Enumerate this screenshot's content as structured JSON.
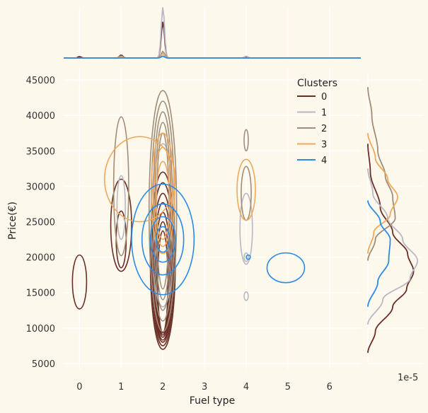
{
  "chart_data": {
    "type": "kde-jointplot",
    "xlabel": "Fuel type",
    "ylabel": "Price(€)",
    "x_ticks": [
      0,
      1,
      2,
      3,
      4,
      5,
      6
    ],
    "y_ticks": [
      5000,
      10000,
      15000,
      20000,
      25000,
      30000,
      35000,
      40000,
      45000
    ],
    "xlim": [
      -0.38,
      6.75
    ],
    "ylim": [
      4200,
      46600
    ],
    "marginal_y_offset_label": "1e-5",
    "legend": {
      "title": "Clusters",
      "placement": "upper-right",
      "entries": [
        "0",
        "1",
        "2",
        "3",
        "4"
      ]
    },
    "series": [
      {
        "name": "0",
        "color": "#6b2e27",
        "contours": [
          {
            "x": 0,
            "y": 16500,
            "rx": 0.17,
            "ry": 3800
          },
          {
            "x": 1,
            "y": 24500,
            "rx": 0.25,
            "ry": 6500
          },
          {
            "x": 1,
            "y": 22500,
            "rx": 0.12,
            "ry": 4000
          },
          {
            "x": 2,
            "y": 19500,
            "rx": 0.3,
            "ry": 12500
          },
          {
            "x": 2,
            "y": 19000,
            "rx": 0.27,
            "ry": 11500
          },
          {
            "x": 2,
            "y": 18500,
            "rx": 0.24,
            "ry": 10500
          },
          {
            "x": 2,
            "y": 18000,
            "rx": 0.21,
            "ry": 9700
          },
          {
            "x": 2,
            "y": 17500,
            "rx": 0.18,
            "ry": 8800
          },
          {
            "x": 2,
            "y": 17000,
            "rx": 0.15,
            "ry": 8000
          },
          {
            "x": 2,
            "y": 16500,
            "rx": 0.12,
            "ry": 7200
          }
        ],
        "marginal_x": [
          {
            "x": 0,
            "h": 0.04
          },
          {
            "x": 1,
            "h": 0.08
          },
          {
            "x": 2,
            "h": 1.0
          },
          {
            "x": 4,
            "h": 0.02
          }
        ],
        "marginal_y": [
          {
            "y": 6500,
            "d": 0
          },
          {
            "y": 9500,
            "d": 0.15
          },
          {
            "y": 13000,
            "d": 0.5
          },
          {
            "y": 15500,
            "d": 0.78
          },
          {
            "y": 18000,
            "d": 0.92
          },
          {
            "y": 20500,
            "d": 0.8
          },
          {
            "y": 23500,
            "d": 0.5
          },
          {
            "y": 27000,
            "d": 0.25
          },
          {
            "y": 32000,
            "d": 0.05
          },
          {
            "y": 36000,
            "d": 0
          }
        ]
      },
      {
        "name": "1",
        "color": "#b8b8c4",
        "contours": [
          {
            "x": 1,
            "y": 27000,
            "rx": 0.1,
            "ry": 4500
          },
          {
            "x": 2,
            "y": 24500,
            "rx": 0.28,
            "ry": 11500
          },
          {
            "x": 4,
            "y": 24000,
            "rx": 0.15,
            "ry": 5000
          },
          {
            "x": 4,
            "y": 20000,
            "rx": 0.05,
            "ry": 600
          },
          {
            "x": 4,
            "y": 14500,
            "rx": 0.05,
            "ry": 600
          }
        ],
        "marginal_x": [
          {
            "x": 0,
            "h": 0.0
          },
          {
            "x": 1,
            "h": 0.05
          },
          {
            "x": 2,
            "h": 1.4
          },
          {
            "x": 4,
            "h": 0.05
          }
        ],
        "marginal_y": [
          {
            "y": 10500,
            "d": 0
          },
          {
            "y": 14000,
            "d": 0.3
          },
          {
            "y": 17000,
            "d": 0.85
          },
          {
            "y": 19500,
            "d": 1.0
          },
          {
            "y": 22500,
            "d": 0.7
          },
          {
            "y": 25500,
            "d": 0.4
          },
          {
            "y": 29000,
            "d": 0.1
          },
          {
            "y": 32500,
            "d": 0
          }
        ]
      },
      {
        "name": "2",
        "color": "#a08e78",
        "contours": [
          {
            "x": 1,
            "y": 30000,
            "rx": 0.18,
            "ry": 9800
          },
          {
            "x": 2,
            "y": 26500,
            "rx": 0.33,
            "ry": 17000
          },
          {
            "x": 2,
            "y": 26500,
            "rx": 0.28,
            "ry": 15500
          },
          {
            "x": 2,
            "y": 26500,
            "rx": 0.23,
            "ry": 14000
          },
          {
            "x": 2,
            "y": 26500,
            "rx": 0.19,
            "ry": 12500
          },
          {
            "x": 2,
            "y": 26500,
            "rx": 0.15,
            "ry": 11000
          },
          {
            "x": 4,
            "y": 29000,
            "rx": 0.12,
            "ry": 3800
          },
          {
            "x": 4,
            "y": 36500,
            "rx": 0.05,
            "ry": 1500
          }
        ],
        "marginal_x": [
          {
            "x": 0,
            "h": 0.0
          },
          {
            "x": 1,
            "h": 0.03
          },
          {
            "x": 2,
            "h": 0.18
          },
          {
            "x": 4,
            "h": 0.0
          }
        ],
        "marginal_y": [
          {
            "y": 19500,
            "d": 0
          },
          {
            "y": 22500,
            "d": 0.15
          },
          {
            "y": 25500,
            "d": 0.55
          },
          {
            "y": 28500,
            "d": 0.5
          },
          {
            "y": 31500,
            "d": 0.35
          },
          {
            "y": 35000,
            "d": 0.2
          },
          {
            "y": 40000,
            "d": 0.08
          },
          {
            "y": 44000,
            "d": 0
          }
        ]
      },
      {
        "name": "3",
        "color": "#f0a85a",
        "contours": [
          {
            "x": 1.45,
            "y": 31000,
            "rx": 0.85,
            "ry": 6000
          },
          {
            "x": 2,
            "y": 29000,
            "rx": 0.28,
            "ry": 8500
          },
          {
            "x": 2,
            "y": 28500,
            "rx": 0.22,
            "ry": 7000
          },
          {
            "x": 2,
            "y": 28000,
            "rx": 0.16,
            "ry": 5500
          },
          {
            "x": 4,
            "y": 29500,
            "rx": 0.22,
            "ry": 4300
          }
        ],
        "marginal_x": [
          {
            "x": 0,
            "h": 0.0
          },
          {
            "x": 1,
            "h": 0.02
          },
          {
            "x": 2,
            "h": 0.12
          },
          {
            "x": 4,
            "h": 0.0
          }
        ],
        "marginal_y": [
          {
            "y": 20500,
            "d": 0
          },
          {
            "y": 23500,
            "d": 0.12
          },
          {
            "y": 26000,
            "d": 0.45
          },
          {
            "y": 28500,
            "d": 0.6
          },
          {
            "y": 31000,
            "d": 0.4
          },
          {
            "y": 34000,
            "d": 0.15
          },
          {
            "y": 37500,
            "d": 0
          }
        ]
      },
      {
        "name": "4",
        "color": "#2b8ae6",
        "contours": [
          {
            "x": 2,
            "y": 22500,
            "rx": 0.75,
            "ry": 7800
          },
          {
            "x": 2,
            "y": 22500,
            "rx": 0.5,
            "ry": 5000
          },
          {
            "x": 2,
            "y": 22500,
            "rx": 0.3,
            "ry": 3200
          },
          {
            "x": 2,
            "y": 22500,
            "rx": 0.16,
            "ry": 1800
          },
          {
            "x": 4.05,
            "y": 20000,
            "rx": 0.05,
            "ry": 300
          },
          {
            "x": 4.95,
            "y": 18500,
            "rx": 0.45,
            "ry": 2100
          }
        ],
        "marginal_x": [
          {
            "x": 0,
            "h": 0.0
          },
          {
            "x": 1,
            "h": 0.0
          },
          {
            "x": 2,
            "h": 0.05
          },
          {
            "x": 4,
            "h": 0.0
          }
        ],
        "marginal_y": [
          {
            "y": 13000,
            "d": 0
          },
          {
            "y": 16500,
            "d": 0.2
          },
          {
            "y": 19500,
            "d": 0.42
          },
          {
            "y": 22500,
            "d": 0.45
          },
          {
            "y": 25000,
            "d": 0.25
          },
          {
            "y": 28000,
            "d": 0
          }
        ]
      }
    ]
  }
}
